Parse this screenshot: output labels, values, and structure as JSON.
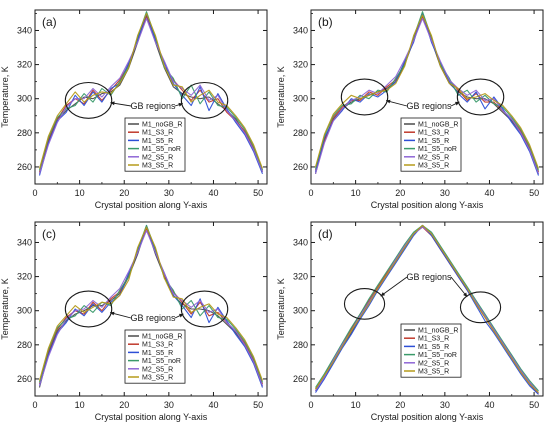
{
  "figure": {
    "background": "#ffffff",
    "frame_color": "#1a1a1a"
  },
  "series_colors": {
    "M1_noGB_R": "#4a4a4a",
    "M1_S3_R": "#c0392b",
    "M1_S5_R": "#2d4fd6",
    "M1_S5_noR": "#3a9a6a",
    "M2_S5_R": "#8e66d6",
    "M3_S5_R": "#b59a1a"
  },
  "chart_data": [
    {
      "type": "line",
      "panel": "(a)",
      "xlabel": "Crystal position along Y-axis",
      "ylabel": "Temperature, K",
      "xlim": [
        0,
        52
      ],
      "ylim": [
        250,
        352
      ],
      "xticks": [
        0,
        10,
        20,
        30,
        40,
        50
      ],
      "yticks": [
        260,
        280,
        300,
        320,
        340
      ],
      "legend": {
        "position": "center",
        "entries": [
          "M1_noGB_R",
          "M1_S3_R",
          "M1_S5_R",
          "M1_S5_noR",
          "M2_S5_R",
          "M3_S5_R"
        ]
      },
      "annotation": "GB regions",
      "gb_circles": [
        [
          12,
          299
        ],
        [
          38,
          299
        ]
      ],
      "circle_r_data": [
        5.2,
        10.5
      ],
      "x": [
        1,
        3,
        5,
        7,
        9,
        11,
        13,
        15,
        17,
        19,
        21,
        23,
        25,
        27,
        29,
        31,
        33,
        35,
        37,
        39,
        41,
        43,
        45,
        47,
        49,
        51
      ],
      "series": [
        {
          "name": "M1_noGB_R",
          "values": [
            256,
            275,
            288,
            293,
            297,
            301,
            300,
            303,
            304,
            308,
            318,
            333,
            349,
            333,
            318,
            307,
            303,
            301,
            300,
            301,
            297,
            293,
            288,
            280,
            270,
            258
          ]
        },
        {
          "name": "M1_S3_R",
          "values": [
            257,
            276,
            288,
            296,
            300,
            297,
            305,
            299,
            305,
            311,
            320,
            335,
            348,
            335,
            319,
            311,
            305,
            299,
            305,
            298,
            300,
            292,
            287,
            281,
            271,
            257
          ]
        },
        {
          "name": "M1_S5_R",
          "values": [
            255,
            274,
            287,
            292,
            302,
            296,
            304,
            298,
            306,
            309,
            321,
            334,
            350,
            334,
            321,
            309,
            302,
            296,
            307,
            293,
            303,
            294,
            286,
            279,
            269,
            256
          ]
        },
        {
          "name": "M1_S5_noR",
          "values": [
            258,
            277,
            289,
            294,
            296,
            303,
            298,
            306,
            302,
            310,
            319,
            336,
            351,
            336,
            318,
            312,
            300,
            308,
            297,
            304,
            296,
            295,
            289,
            282,
            272,
            258
          ]
        },
        {
          "name": "M2_S5_R",
          "values": [
            256,
            273,
            286,
            295,
            300,
            300,
            306,
            301,
            307,
            312,
            322,
            333,
            347,
            333,
            322,
            310,
            306,
            302,
            308,
            299,
            302,
            293,
            287,
            280,
            270,
            257
          ]
        },
        {
          "name": "M3_S5_R",
          "values": [
            259,
            278,
            290,
            297,
            304,
            298,
            302,
            304,
            303,
            309,
            318,
            337,
            350,
            337,
            319,
            308,
            307,
            298,
            302,
            305,
            298,
            296,
            290,
            283,
            273,
            259
          ]
        }
      ]
    },
    {
      "type": "line",
      "panel": "(b)",
      "xlabel": "Crystal position along Y-axis",
      "ylabel": "Temperature, K",
      "xlim": [
        0,
        52
      ],
      "ylim": [
        250,
        352
      ],
      "xticks": [
        0,
        10,
        20,
        30,
        40,
        50
      ],
      "yticks": [
        260,
        280,
        300,
        320,
        340
      ],
      "legend": {
        "position": "center",
        "entries": [
          "M1_noGB_R",
          "M1_S3_R",
          "M1_S5_R",
          "M1_S5_noR",
          "M2_S5_R",
          "M3_S5_R"
        ]
      },
      "annotation": "GB regions",
      "gb_circles": [
        [
          12,
          301
        ],
        [
          38,
          301
        ]
      ],
      "circle_r_data": [
        5.2,
        10.5
      ],
      "x": [
        1,
        3,
        5,
        7,
        9,
        11,
        13,
        15,
        17,
        19,
        21,
        23,
        25,
        27,
        29,
        31,
        33,
        35,
        37,
        39,
        41,
        43,
        45,
        47,
        49,
        51
      ],
      "series": [
        {
          "name": "M1_noGB_R",
          "values": [
            256,
            276,
            288,
            294,
            298,
            300,
            302,
            304,
            306,
            310,
            320,
            334,
            349,
            334,
            319,
            309,
            304,
            301,
            300,
            300,
            297,
            292,
            287,
            280,
            270,
            256
          ]
        },
        {
          "name": "M1_S3_R",
          "values": [
            258,
            275,
            289,
            295,
            299,
            299,
            304,
            302,
            307,
            311,
            321,
            335,
            348,
            335,
            320,
            311,
            305,
            299,
            303,
            298,
            298,
            293,
            288,
            281,
            271,
            257
          ]
        },
        {
          "name": "M1_S5_R",
          "values": [
            257,
            277,
            287,
            293,
            300,
            298,
            303,
            301,
            305,
            310,
            322,
            333,
            350,
            333,
            321,
            310,
            303,
            298,
            304,
            294,
            301,
            294,
            286,
            279,
            269,
            255
          ]
        },
        {
          "name": "M1_S5_noR",
          "values": [
            259,
            278,
            290,
            296,
            297,
            302,
            300,
            305,
            304,
            312,
            320,
            336,
            351,
            336,
            320,
            312,
            302,
            305,
            298,
            302,
            297,
            295,
            289,
            282,
            272,
            258
          ]
        },
        {
          "name": "M2_S5_R",
          "values": [
            256,
            274,
            287,
            294,
            299,
            301,
            305,
            303,
            308,
            313,
            323,
            334,
            347,
            334,
            322,
            311,
            306,
            302,
            305,
            299,
            300,
            293,
            288,
            280,
            270,
            256
          ]
        },
        {
          "name": "M3_S5_R",
          "values": [
            260,
            279,
            291,
            297,
            302,
            300,
            302,
            304,
            305,
            309,
            319,
            337,
            349,
            337,
            319,
            309,
            306,
            300,
            301,
            303,
            299,
            296,
            290,
            283,
            273,
            259
          ]
        }
      ]
    },
    {
      "type": "line",
      "panel": "(c)",
      "xlabel": "Crystal position along Y-axis",
      "ylabel": "Temperature, K",
      "xlim": [
        0,
        52
      ],
      "ylim": [
        250,
        352
      ],
      "xticks": [
        0,
        10,
        20,
        30,
        40,
        50
      ],
      "yticks": [
        260,
        280,
        300,
        320,
        340
      ],
      "legend": {
        "position": "center",
        "entries": [
          "M1_noGB_R",
          "M1_S3_R",
          "M1_S5_R",
          "M1_S5_noR",
          "M2_S5_R",
          "M3_S5_R"
        ]
      },
      "annotation": "GB regions",
      "gb_circles": [
        [
          12,
          301
        ],
        [
          38,
          301
        ]
      ],
      "circle_r_data": [
        5.2,
        10.5
      ],
      "x": [
        1,
        3,
        5,
        7,
        9,
        11,
        13,
        15,
        17,
        19,
        21,
        23,
        25,
        27,
        29,
        31,
        33,
        35,
        37,
        39,
        41,
        43,
        45,
        47,
        49,
        51
      ],
      "series": [
        {
          "name": "M1_noGB_R",
          "values": [
            255,
            275,
            288,
            294,
            298,
            300,
            303,
            303,
            306,
            310,
            320,
            333,
            349,
            333,
            320,
            309,
            304,
            301,
            301,
            300,
            297,
            292,
            287,
            280,
            270,
            256
          ]
        },
        {
          "name": "M1_S3_R",
          "values": [
            257,
            276,
            289,
            296,
            300,
            298,
            305,
            300,
            307,
            311,
            321,
            335,
            348,
            335,
            320,
            311,
            305,
            298,
            305,
            297,
            299,
            293,
            288,
            281,
            271,
            257
          ]
        },
        {
          "name": "M1_S5_R",
          "values": [
            256,
            274,
            287,
            293,
            301,
            297,
            304,
            299,
            305,
            309,
            322,
            334,
            350,
            334,
            322,
            309,
            303,
            296,
            307,
            293,
            302,
            294,
            286,
            279,
            269,
            255
          ]
        },
        {
          "name": "M1_S5_noR",
          "values": [
            258,
            277,
            290,
            295,
            297,
            303,
            299,
            305,
            303,
            312,
            320,
            336,
            350,
            336,
            319,
            312,
            301,
            306,
            297,
            303,
            296,
            295,
            289,
            282,
            272,
            258
          ]
        },
        {
          "name": "M2_S5_R",
          "values": [
            256,
            273,
            286,
            295,
            300,
            301,
            306,
            302,
            308,
            313,
            323,
            334,
            347,
            334,
            322,
            310,
            306,
            302,
            306,
            299,
            301,
            293,
            288,
            280,
            270,
            256
          ]
        },
        {
          "name": "M3_S5_R",
          "values": [
            259,
            278,
            291,
            297,
            303,
            299,
            302,
            305,
            304,
            309,
            318,
            337,
            349,
            337,
            319,
            308,
            307,
            299,
            302,
            304,
            298,
            296,
            290,
            283,
            273,
            259
          ]
        }
      ]
    },
    {
      "type": "line",
      "panel": "(d)",
      "xlabel": "Crystal position along Y-axis",
      "ylabel": "Temperature, K",
      "xlim": [
        0,
        52
      ],
      "ylim": [
        250,
        352
      ],
      "xticks": [
        0,
        10,
        20,
        30,
        40,
        50
      ],
      "yticks": [
        260,
        280,
        300,
        320,
        340
      ],
      "legend": {
        "position": "bottom-center",
        "entries": [
          "M1_noGB_R",
          "M1_S3_R",
          "M1_S5_R",
          "M1_S5_noR",
          "M2_S5_R",
          "M3_S5_R"
        ]
      },
      "annotation": "GB regions",
      "gb_circles": [
        [
          12,
          304
        ],
        [
          38,
          302
        ]
      ],
      "circle_r_data": [
        4.5,
        9
      ],
      "x": [
        1,
        3,
        5,
        7,
        9,
        11,
        13,
        15,
        17,
        19,
        21,
        23,
        25,
        27,
        29,
        31,
        33,
        35,
        37,
        39,
        41,
        43,
        45,
        47,
        49,
        51
      ],
      "series": [
        {
          "name": "M1_noGB_R",
          "values": [
            253,
            261,
            270,
            279,
            287,
            296,
            305,
            313,
            321,
            329,
            337,
            345,
            350,
            345,
            337,
            329,
            321,
            313,
            305,
            297,
            289,
            281,
            273,
            265,
            258,
            252
          ]
        },
        {
          "name": "M1_S3_R",
          "values": [
            254,
            262,
            271,
            280,
            289,
            298,
            306,
            314,
            322,
            330,
            338,
            345,
            349,
            344,
            336,
            328,
            320,
            312,
            304,
            296,
            288,
            280,
            272,
            264,
            257,
            251
          ]
        },
        {
          "name": "M1_S5_R",
          "values": [
            252,
            260,
            269,
            278,
            286,
            295,
            303,
            312,
            320,
            328,
            336,
            344,
            350,
            344,
            336,
            328,
            320,
            312,
            303,
            294,
            287,
            279,
            271,
            263,
            256,
            251
          ]
        },
        {
          "name": "M1_S5_noR",
          "values": [
            255,
            263,
            272,
            281,
            290,
            298,
            307,
            315,
            323,
            331,
            339,
            346,
            350,
            346,
            338,
            330,
            322,
            314,
            306,
            298,
            290,
            282,
            274,
            266,
            259,
            253
          ]
        },
        {
          "name": "M2_S5_R",
          "values": [
            253,
            261,
            271,
            280,
            288,
            297,
            305,
            313,
            321,
            330,
            338,
            345,
            349,
            345,
            337,
            329,
            321,
            313,
            305,
            297,
            289,
            281,
            273,
            265,
            258,
            252
          ]
        },
        {
          "name": "M3_S5_R",
          "values": [
            254,
            262,
            270,
            279,
            288,
            296,
            304,
            313,
            321,
            329,
            337,
            345,
            350,
            345,
            337,
            329,
            321,
            313,
            304,
            296,
            288,
            280,
            272,
            264,
            257,
            252
          ]
        }
      ]
    }
  ]
}
